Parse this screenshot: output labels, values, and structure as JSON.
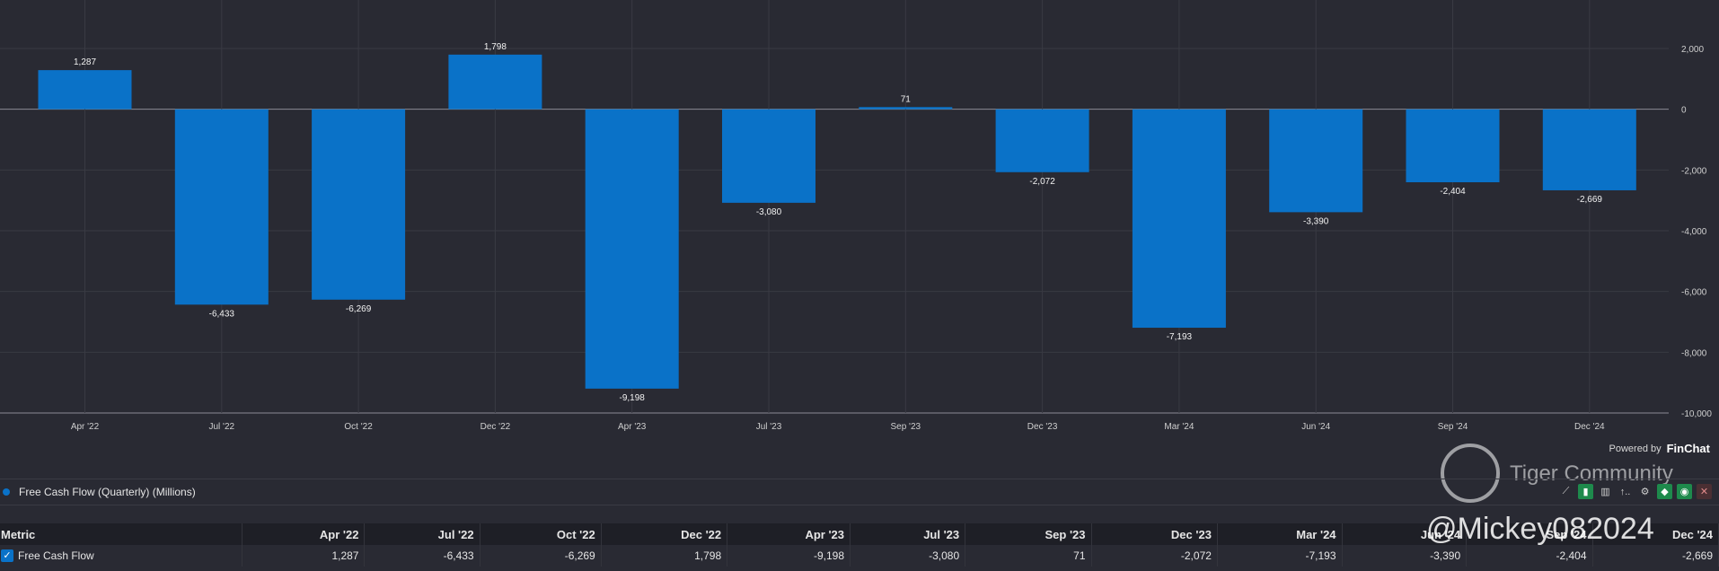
{
  "chart_data": {
    "type": "bar",
    "categories": [
      "Apr '22",
      "Jul '22",
      "Oct '22",
      "Dec '22",
      "Apr '23",
      "Jul '23",
      "Sep '23",
      "Dec '23",
      "Mar '24",
      "Jun '24",
      "Sep '24",
      "Dec '24"
    ],
    "values": [
      1287,
      -6433,
      -6269,
      1798,
      -9198,
      -3080,
      71,
      -2072,
      -7193,
      -3390,
      -2404,
      -2669
    ],
    "value_labels": [
      "1,287",
      "-6,433",
      "-6,269",
      "1,798",
      "-9,198",
      "-3,080",
      "71",
      "-2,072",
      "-7,193",
      "-3,390",
      "-2,404",
      "-2,669"
    ],
    "ylim": [
      -10000,
      2000
    ],
    "yticks": [
      2000,
      0,
      -2000,
      -4000,
      -6000,
      -8000,
      -10000
    ],
    "ytick_labels": [
      "2,000",
      "0",
      "-2,000",
      "-4,000",
      "-6,000",
      "-8,000",
      "-10,000"
    ],
    "grid": true,
    "y_axis_position": "right",
    "bar_color": "#0a72c8"
  },
  "legend": {
    "label": "Free Cash Flow (Quarterly) (Millions)"
  },
  "branding": {
    "powered_by": "Powered by",
    "brand": "FinChat"
  },
  "watermark": {
    "community": "Tiger Community",
    "handle": "@Mickey082024"
  },
  "table": {
    "header": [
      "Metric",
      "Apr '22",
      "Jul '22",
      "Oct '22",
      "Dec '22",
      "Apr '23",
      "Jul '23",
      "Sep '23",
      "Dec '23",
      "Mar '24",
      "Jun '24",
      "Sep '24",
      "Dec '24"
    ],
    "row_label": "Free Cash Flow",
    "row_values": [
      "1,287",
      "-6,433",
      "-6,269",
      "1,798",
      "-9,198",
      "-3,080",
      "71",
      "-2,072",
      "-7,193",
      "-3,390",
      "-2,404",
      "-2,669"
    ]
  },
  "toolbar": {
    "icons": [
      "trend-line-icon",
      "bar-chart-icon",
      "column-chart-icon",
      "sort-icon",
      "settings-icon",
      "tag-icon",
      "eye-icon",
      "close-icon"
    ],
    "sort_label": "↑.."
  }
}
